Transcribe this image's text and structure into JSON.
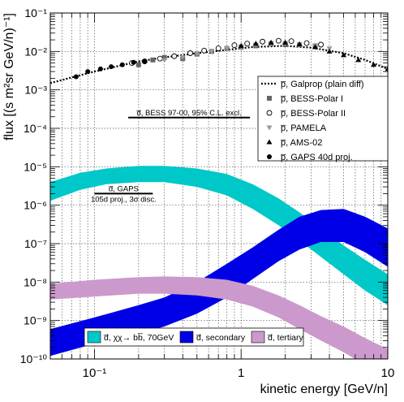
{
  "chart_data": {
    "type": "line",
    "xlabel": "kinetic energy [GeV/n]",
    "ylabel": "flux [(s m²sr GeV/n)⁻¹]",
    "xscale": "log",
    "yscale": "log",
    "xlim": [
      0.05,
      10
    ],
    "ylim": [
      1e-10,
      0.1
    ],
    "grid": true,
    "x_tick_labels": [
      "10⁻¹",
      "1",
      "10"
    ],
    "y_tick_labels": [
      "10⁻¹⁰",
      "10⁻⁹",
      "10⁻⁸",
      "10⁻⁷",
      "10⁻⁶",
      "10⁻⁵",
      "10⁻⁴",
      "10⁻³",
      "10⁻²",
      "10⁻¹"
    ],
    "legend_placement": "right",
    "legend_bottom_placement": "bottom",
    "bands": [
      {
        "name": "d̅, χχ→ bb̅, 70GeV",
        "color": "#00c8c8",
        "x": [
          0.05,
          0.08,
          0.12,
          0.2,
          0.3,
          0.5,
          0.8,
          1.2,
          1.8,
          2.5,
          3.5,
          5,
          7,
          10
        ],
        "lower": [
          1.3e-06,
          2.5e-06,
          3.5e-06,
          4e-06,
          4e-06,
          3e-06,
          1.8e-06,
          8e-07,
          3e-07,
          1.2e-07,
          4.5e-08,
          1.6e-08,
          6e-09,
          2.5e-09
        ],
        "upper": [
          4e-06,
          7e-06,
          9e-06,
          1.05e-05,
          1.05e-05,
          9e-06,
          6.5e-06,
          3.5e-06,
          1.5e-06,
          6.5e-07,
          2.5e-07,
          9e-08,
          3.8e-08,
          1.6e-08
        ]
      },
      {
        "name": "d̅, secondary",
        "color": "#0000e6",
        "x": [
          0.05,
          0.1,
          0.2,
          0.3,
          0.5,
          0.8,
          1.2,
          1.8,
          2.5,
          3.5,
          5,
          7,
          10
        ],
        "lower": [
          1.2e-10,
          2.5e-10,
          4.5e-10,
          7e-10,
          1.5e-09,
          4e-09,
          1.2e-08,
          3.5e-08,
          7e-08,
          1.1e-07,
          1.1e-07,
          6e-08,
          2.5e-08
        ],
        "upper": [
          6e-10,
          1.2e-09,
          2.5e-09,
          4e-09,
          1e-08,
          3e-08,
          8e-08,
          2.3e-07,
          5e-07,
          7.5e-07,
          8e-07,
          5e-07,
          2.5e-07
        ]
      },
      {
        "name": "d̅, tertiary",
        "color": "#cc99cc",
        "x": [
          0.05,
          0.1,
          0.2,
          0.3,
          0.5,
          0.8,
          1.2,
          1.8,
          2.5,
          3.5,
          5,
          7,
          10
        ],
        "lower": [
          3.5e-09,
          4.2e-09,
          5e-09,
          5e-09,
          4.5e-09,
          3.5e-09,
          2.3e-09,
          1.2e-09,
          6e-10,
          3e-10,
          1.5e-10,
          7e-11,
          3e-11
        ],
        "upper": [
          9e-09,
          1.15e-08,
          1.35e-08,
          1.4e-08,
          1.35e-08,
          1.15e-08,
          8e-09,
          4.5e-09,
          2.5e-09,
          1.3e-09,
          7e-10,
          3.5e-10,
          1.8e-10
        ]
      }
    ],
    "lines": [
      {
        "name": "p̅, Galprop (plain diff)",
        "style": "dotted",
        "color": "#000000",
        "x": [
          0.05,
          0.1,
          0.2,
          0.3,
          0.5,
          0.8,
          1.2,
          2,
          3,
          5,
          7,
          10
        ],
        "y": [
          0.0015,
          0.003,
          0.0055,
          0.007,
          0.009,
          0.011,
          0.013,
          0.014,
          0.0125,
          0.009,
          0.006,
          0.0035
        ]
      }
    ],
    "series": [
      {
        "name": "p̅, BESS-Polar I",
        "marker": "square",
        "color": "#666666",
        "x": [
          0.2,
          0.25,
          0.3,
          0.4,
          0.5,
          0.63,
          0.8,
          1.0,
          1.26,
          1.6,
          2.0,
          2.5,
          3.2
        ],
        "y": [
          0.0045,
          0.006,
          0.007,
          0.0065,
          0.0085,
          0.01,
          0.012,
          0.013,
          0.014,
          0.016,
          0.015,
          0.015,
          0.014
        ]
      },
      {
        "name": "p̅, BESS-Polar II",
        "marker": "open-circle",
        "color": "#000000",
        "x": [
          0.18,
          0.22,
          0.28,
          0.35,
          0.45,
          0.56,
          0.7,
          0.9,
          1.1,
          1.4,
          1.8,
          2.2,
          2.8,
          3.5
        ],
        "y": [
          0.005,
          0.0055,
          0.0065,
          0.0075,
          0.009,
          0.0105,
          0.012,
          0.0145,
          0.016,
          0.018,
          0.019,
          0.0185,
          0.0165,
          0.015
        ]
      },
      {
        "name": "p̅, PAMELA",
        "marker": "triangle-down",
        "color": "#999999",
        "x": [
          0.3,
          0.4,
          0.5,
          0.63,
          0.8,
          1.0,
          1.26,
          1.6,
          2.0,
          2.5,
          3.2,
          4.0
        ],
        "y": [
          0.006,
          0.007,
          0.0085,
          0.01,
          0.012,
          0.0135,
          0.015,
          0.016,
          0.0165,
          0.0155,
          0.014,
          0.012
        ]
      },
      {
        "name": "p̅, AMS-02",
        "marker": "triangle-up",
        "color": "#000000",
        "x": [
          1.0,
          1.26,
          1.6,
          2.0,
          2.5,
          3.2,
          4.0,
          5.0,
          6.3,
          8.0,
          10.0
        ],
        "y": [
          0.014,
          0.016,
          0.017,
          0.017,
          0.0155,
          0.013,
          0.01,
          0.008,
          0.006,
          0.0045,
          0.0035
        ]
      },
      {
        "name": "p̅, GAPS 40d proj.",
        "marker": "circle",
        "color": "#000000",
        "x": [
          0.075,
          0.09,
          0.11,
          0.13,
          0.155,
          0.185,
          0.22
        ],
        "y": [
          0.0022,
          0.003,
          0.0035,
          0.004,
          0.0045,
          0.0052,
          0.0055
        ]
      }
    ],
    "limits": [
      {
        "label": "d̅, BESS 97-00, 95% C.L. excl.",
        "x": [
          0.17,
          1.15
        ],
        "y": 0.00019
      },
      {
        "label": "d̅, GAPS",
        "sublabel": "105d proj., 3σ disc.",
        "x": [
          0.1,
          0.25
        ],
        "y": 2e-06
      }
    ]
  }
}
